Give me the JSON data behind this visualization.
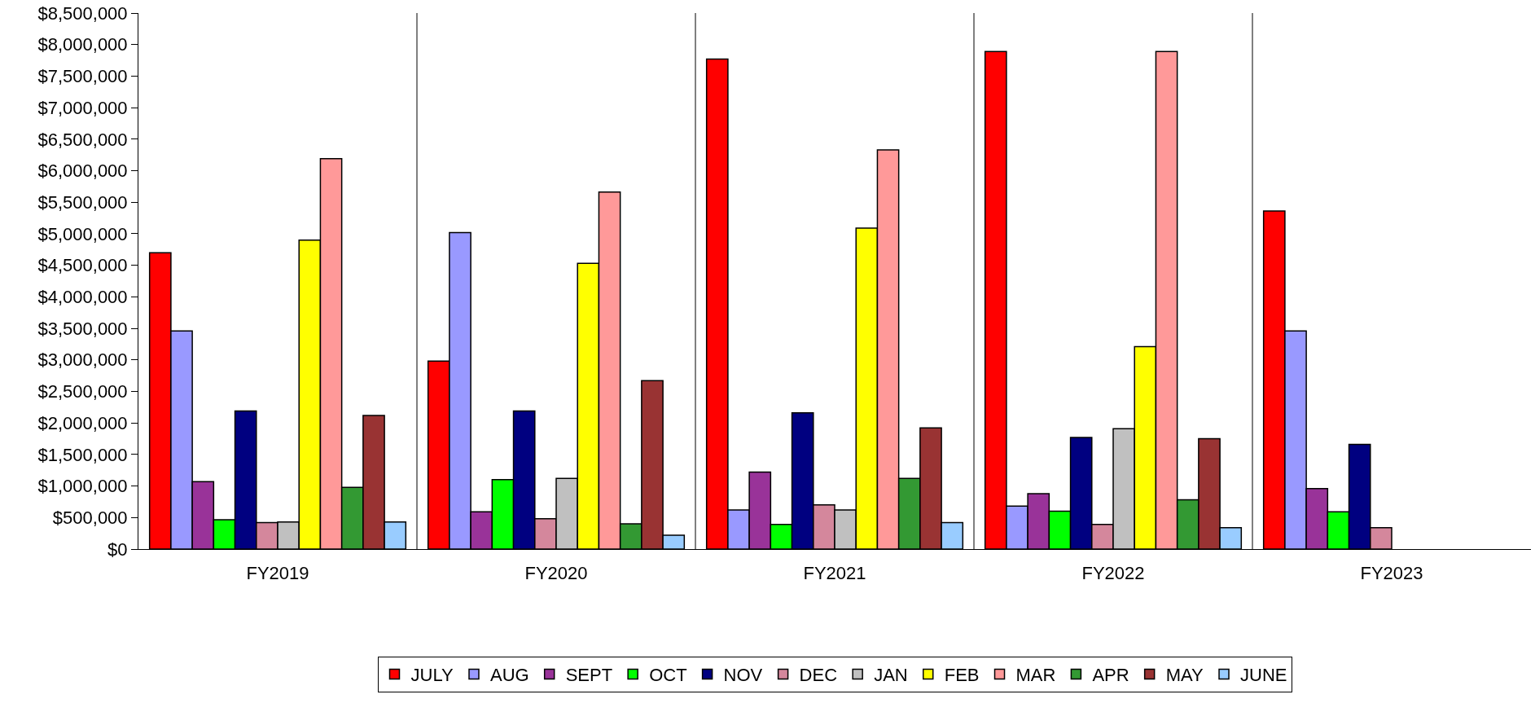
{
  "chart_data": {
    "type": "bar",
    "categories": [
      "FY2019",
      "FY2020",
      "FY2021",
      "FY2022",
      "FY2023"
    ],
    "series": [
      {
        "name": "JULY",
        "color": "#ff0000",
        "values": [
          4700000,
          2980000,
          7770000,
          7890000,
          5360000
        ]
      },
      {
        "name": "AUG",
        "color": "#9999ff",
        "values": [
          3460000,
          5020000,
          620000,
          680000,
          3460000
        ]
      },
      {
        "name": "SEPT",
        "color": "#993399",
        "values": [
          1070000,
          590000,
          1220000,
          880000,
          960000
        ]
      },
      {
        "name": "OCT",
        "color": "#00ff00",
        "values": [
          465000,
          1100000,
          390000,
          600000,
          590000
        ]
      },
      {
        "name": "NOV",
        "color": "#000080",
        "values": [
          2190000,
          2190000,
          2160000,
          1770000,
          1660000
        ]
      },
      {
        "name": "DEC",
        "color": "#d4879c",
        "values": [
          420000,
          480000,
          700000,
          390000,
          340000
        ]
      },
      {
        "name": "JAN",
        "color": "#c0c0c0",
        "values": [
          430000,
          1120000,
          620000,
          1910000,
          null
        ]
      },
      {
        "name": "FEB",
        "color": "#ffff00",
        "values": [
          4900000,
          4530000,
          5090000,
          3210000,
          null
        ]
      },
      {
        "name": "MAR",
        "color": "#ff9999",
        "values": [
          6190000,
          5660000,
          6330000,
          7890000,
          null
        ]
      },
      {
        "name": "APR",
        "color": "#339933",
        "values": [
          980000,
          400000,
          1120000,
          780000,
          null
        ]
      },
      {
        "name": "MAY",
        "color": "#993333",
        "values": [
          2120000,
          2670000,
          1920000,
          1750000,
          null
        ]
      },
      {
        "name": "JUNE",
        "color": "#99ccff",
        "values": [
          430000,
          220000,
          420000,
          340000,
          null
        ]
      }
    ],
    "ylim": [
      0,
      8500000
    ],
    "yticks": [
      {
        "value": 0,
        "label": "$0"
      },
      {
        "value": 500000,
        "label": "$500,000"
      },
      {
        "value": 1000000,
        "label": "$1,000,000"
      },
      {
        "value": 1500000,
        "label": "$1,500,000"
      },
      {
        "value": 2000000,
        "label": "$2,000,000"
      },
      {
        "value": 2500000,
        "label": "$2,500,000"
      },
      {
        "value": 3000000,
        "label": "$3,000,000"
      },
      {
        "value": 3500000,
        "label": "$3,500,000"
      },
      {
        "value": 4000000,
        "label": "$4,000,000"
      },
      {
        "value": 4500000,
        "label": "$4,500,000"
      },
      {
        "value": 5000000,
        "label": "$5,000,000"
      },
      {
        "value": 5500000,
        "label": "$5,500,000"
      },
      {
        "value": 6000000,
        "label": "$6,000,000"
      },
      {
        "value": 6500000,
        "label": "$6,500,000"
      },
      {
        "value": 7000000,
        "label": "$7,000,000"
      },
      {
        "value": 7500000,
        "label": "$7,500,000"
      },
      {
        "value": 8000000,
        "label": "$8,000,000"
      },
      {
        "value": 8500000,
        "label": "$8,500,000"
      }
    ],
    "grid": "x",
    "legend": "bottom"
  }
}
